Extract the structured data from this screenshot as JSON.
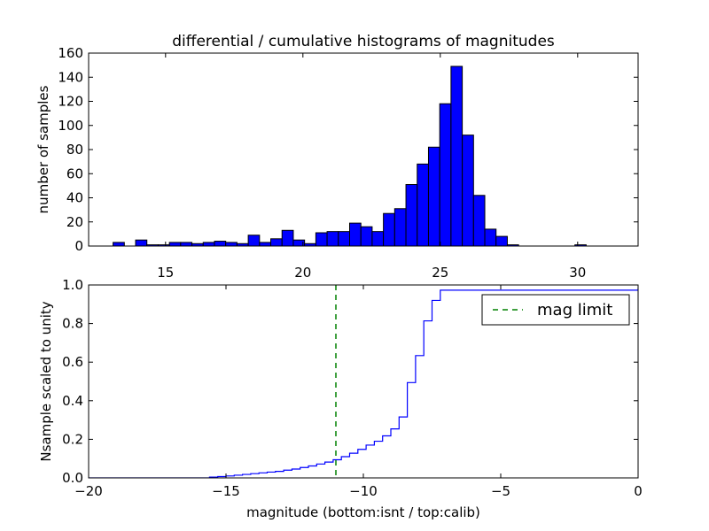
{
  "chart_data": [
    {
      "type": "bar",
      "title": "differential / cumulative histograms of magnitudes",
      "xlabel": "",
      "ylabel": "number of samples",
      "xlim": [
        12.2,
        32.2
      ],
      "ylim": [
        0,
        160
      ],
      "xticks": [
        15,
        20,
        25,
        30
      ],
      "yticks": [
        0,
        20,
        40,
        60,
        80,
        100,
        120,
        140,
        160
      ],
      "bar_color": "#0000ff",
      "bin_width": 0.41,
      "bin_starts": [
        13.09,
        13.5,
        13.91,
        14.32,
        14.73,
        15.14,
        15.55,
        15.96,
        16.37,
        16.78,
        17.19,
        17.6,
        18.01,
        18.42,
        18.83,
        19.24,
        19.65,
        20.06,
        20.47,
        20.88,
        21.29,
        21.7,
        22.11,
        22.52,
        22.93,
        23.34,
        23.75,
        24.16,
        24.57,
        24.98,
        25.39,
        25.8,
        26.21,
        26.62,
        27.03,
        27.44,
        27.85,
        28.26,
        28.67,
        29.08,
        29.49,
        29.9,
        30.31,
        30.72,
        31.13,
        31.54
      ],
      "values": [
        3,
        0,
        5,
        1,
        1,
        3,
        3,
        2,
        3,
        4,
        3,
        2,
        9,
        3,
        6,
        13,
        5,
        2,
        11,
        12,
        12,
        19,
        16,
        12,
        27,
        31,
        51,
        68,
        82,
        118,
        149,
        92,
        42,
        14,
        8,
        1,
        0,
        0,
        0,
        0,
        0,
        1,
        0,
        0,
        0,
        0
      ]
    },
    {
      "type": "line",
      "xlabel": "magnitude (bottom:isnt / top:calib)",
      "ylabel": "Nsample scaled to unity",
      "xlim": [
        -20,
        0
      ],
      "ylim": [
        0,
        1.0
      ],
      "xticks": [
        -20,
        -15,
        -10,
        -5,
        0
      ],
      "yticks": [
        0.0,
        0.2,
        0.4,
        0.6,
        0.8,
        1.0
      ],
      "xtick_labels": [
        "−20",
        "−15",
        "−10",
        "−5",
        "0"
      ],
      "ytick_labels": [
        "0.0",
        "0.2",
        "0.4",
        "0.6",
        "0.8",
        "1.0"
      ],
      "series": [
        {
          "name": "",
          "color": "#0000ff",
          "step": true,
          "x": [
            -20.0,
            -15.6,
            -15.3,
            -15.0,
            -14.7,
            -14.4,
            -14.1,
            -13.8,
            -13.5,
            -13.2,
            -12.9,
            -12.6,
            -12.3,
            -12.0,
            -11.7,
            -11.4,
            -11.1,
            -10.8,
            -10.5,
            -10.2,
            -9.9,
            -9.6,
            -9.3,
            -9.0,
            -8.7,
            -8.4,
            -8.1,
            -7.8,
            -7.5,
            -7.2,
            0.0
          ],
          "y": [
            0.0,
            0.004,
            0.007,
            0.01,
            0.014,
            0.018,
            0.022,
            0.026,
            0.03,
            0.034,
            0.04,
            0.046,
            0.054,
            0.062,
            0.072,
            0.082,
            0.094,
            0.11,
            0.128,
            0.148,
            0.17,
            0.19,
            0.218,
            0.254,
            0.316,
            0.494,
            0.634,
            0.814,
            0.92,
            0.973,
            0.985
          ]
        },
        {
          "name": "mag limit",
          "color": "#008000",
          "dashed": true,
          "vline_x": -11.0
        }
      ],
      "legend": {
        "position": "top-right",
        "entries": [
          "mag limit"
        ]
      }
    }
  ]
}
